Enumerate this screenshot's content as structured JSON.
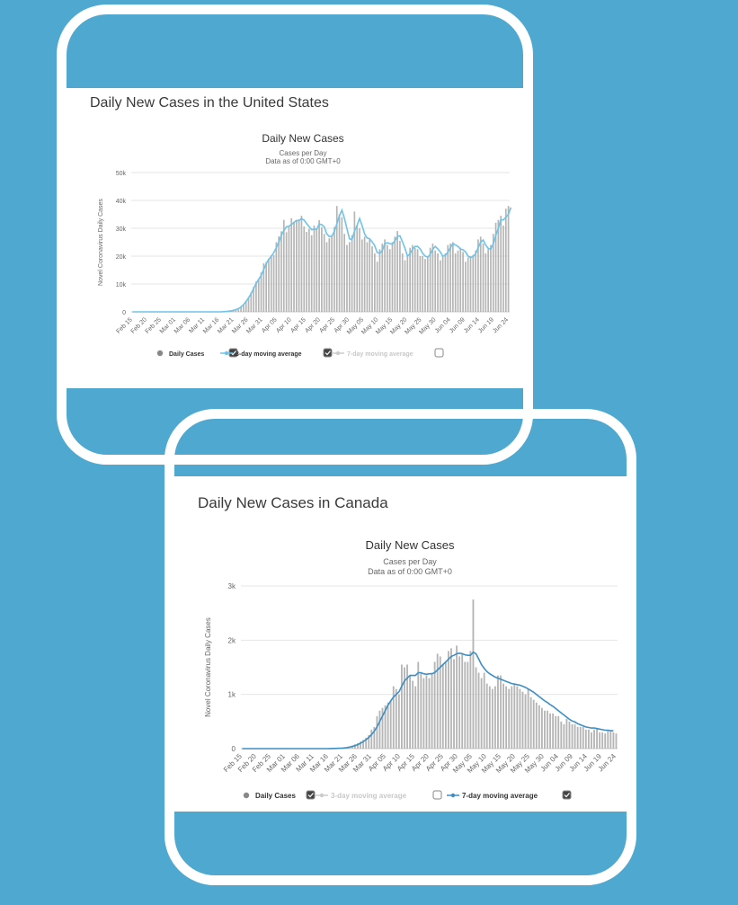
{
  "panels": {
    "us": {
      "title": "Daily New Cases in the United States"
    },
    "ca": {
      "title": "Daily New Cases in Canada"
    }
  },
  "colors": {
    "background": "#4ea8d0",
    "bars": "#b5b5b5",
    "us_average_line": "#6ec3e8",
    "ca_average_line": "#3d8fc4"
  },
  "chart_data": [
    {
      "type": "bar",
      "title": "Daily New Cases",
      "subtitle": "Cases per Day",
      "note": "Data as of 0:00 GMT+0",
      "ylabel": "Novel Coronavirus Daily Cases",
      "xlabel": "",
      "ylim": [
        0,
        50000
      ],
      "yticks": [
        0,
        10000,
        20000,
        30000,
        40000,
        50000
      ],
      "ytick_labels": [
        "0",
        "10k",
        "20k",
        "30k",
        "40k",
        "50k"
      ],
      "grid": true,
      "x_range": [
        "Feb 15",
        "Jun 24"
      ],
      "xtick_labels": [
        "Feb 15",
        "Feb 20",
        "Feb 25",
        "Mar 01",
        "Mar 06",
        "Mar 11",
        "Mar 16",
        "Mar 21",
        "Mar 26",
        "Mar 31",
        "Apr 05",
        "Apr 10",
        "Apr 15",
        "Apr 20",
        "Apr 25",
        "Apr 30",
        "May 05",
        "May 10",
        "May 15",
        "May 20",
        "May 25",
        "May 30",
        "Jun 04",
        "Jun 09",
        "Jun 14",
        "Jun 19",
        "Jun 24"
      ],
      "legend_position": "bottom",
      "legend": [
        {
          "label": "Daily Cases",
          "active": true
        },
        {
          "label": "3-day moving average",
          "active": true
        },
        {
          "label": "7-day moving average",
          "active": false
        }
      ],
      "series": [
        {
          "name": "Daily Cases",
          "values": [
            0,
            0,
            0,
            0,
            0,
            0,
            0,
            0,
            0,
            0,
            0,
            0,
            0,
            0,
            0,
            0,
            0,
            0,
            0,
            0,
            0,
            0,
            0,
            0,
            0,
            0,
            0,
            0,
            0,
            0,
            0,
            0,
            0,
            0,
            0,
            0,
            50,
            100,
            200,
            350,
            500,
            800,
            1200,
            1800,
            2700,
            3900,
            5300,
            7000,
            9000,
            10900,
            11800,
            14100,
            17400,
            17900,
            19100,
            20300,
            20400,
            25000,
            27100,
            28900,
            33000,
            28600,
            30500,
            33600,
            32200,
            32700,
            33200,
            34500,
            30700,
            28700,
            29800,
            27500,
            31000,
            29900,
            32900,
            30400,
            28000,
            25000,
            26400,
            27500,
            30500,
            38000,
            35000,
            34000,
            28000,
            24000,
            25000,
            27500,
            36000,
            31000,
            30000,
            26000,
            27000,
            25000,
            26000,
            23500,
            21000,
            18000,
            22500,
            24500,
            26000,
            24000,
            22500,
            25000,
            27000,
            29000,
            25500,
            21000,
            18500,
            20000,
            23000,
            24000,
            23000,
            22500,
            20000,
            20000,
            19000,
            20000,
            23000,
            24500,
            22000,
            21000,
            18500,
            20000,
            21000,
            24000,
            24500,
            25000,
            21000,
            22000,
            23000,
            21500,
            18000,
            19500,
            20000,
            20500,
            22000,
            26000,
            27000,
            24500,
            21000,
            22500,
            24000,
            28000,
            32000,
            33000,
            34500,
            31000,
            37000,
            38000
          ]
        },
        {
          "name": "3-day moving average",
          "values": [
            0,
            0,
            0,
            0,
            0,
            0,
            0,
            0,
            0,
            0,
            0,
            0,
            0,
            0,
            0,
            0,
            0,
            0,
            0,
            0,
            0,
            0,
            0,
            0,
            0,
            0,
            0,
            0,
            0,
            0,
            0,
            0,
            0,
            0,
            0,
            0,
            50,
            117,
            217,
            350,
            533,
            800,
            1167,
            1767,
            2567,
            3700,
            5033,
            6500,
            8333,
            10200,
            11633,
            13033,
            15133,
            17367,
            18867,
            19900,
            21300,
            23000,
            25000,
            27500,
            29200,
            30500,
            30700,
            31400,
            32100,
            32800,
            32700,
            33500,
            32900,
            31700,
            30600,
            29500,
            29600,
            29600,
            31500,
            31300,
            30500,
            28000,
            27000,
            27200,
            28800,
            31500,
            34500,
            36500,
            33500,
            29800,
            26200,
            26000,
            29000,
            31000,
            33500,
            31000,
            28000,
            26500,
            26200,
            25100,
            23800,
            21300,
            21000,
            22000,
            24500,
            24800,
            24500,
            24300,
            25500,
            27000,
            27300,
            25200,
            22800,
            20000,
            20800,
            22500,
            23500,
            23500,
            22600,
            21000,
            20000,
            19600,
            20600,
            22500,
            23500,
            22600,
            21500,
            20000,
            20300,
            21400,
            23000,
            24500,
            24000,
            23500,
            22500,
            22300,
            21500,
            20000,
            19500,
            19800,
            20800,
            23000,
            25000,
            25800,
            24000,
            22800,
            22500,
            24500,
            27500,
            30000,
            33000,
            33000,
            34000,
            35000,
            37500
          ]
        }
      ]
    },
    {
      "type": "bar",
      "title": "Daily New Cases",
      "subtitle": "Cases per Day",
      "note": "Data as of 0:00 GMT+0",
      "ylabel": "Novel Coronavirus Daily Cases",
      "xlabel": "",
      "ylim": [
        0,
        3000
      ],
      "yticks": [
        0,
        1000,
        2000,
        3000
      ],
      "ytick_labels": [
        "0",
        "1k",
        "2k",
        "3k"
      ],
      "grid": true,
      "x_range": [
        "Feb 15",
        "Jun 24"
      ],
      "xtick_labels": [
        "Feb 15",
        "Feb 20",
        "Feb 25",
        "Mar 01",
        "Mar 06",
        "Mar 11",
        "Mar 16",
        "Mar 21",
        "Mar 26",
        "Mar 31",
        "Apr 05",
        "Apr 10",
        "Apr 15",
        "Apr 20",
        "Apr 25",
        "Apr 30",
        "May 05",
        "May 10",
        "May 15",
        "May 20",
        "May 25",
        "May 30",
        "Jun 04",
        "Jun 09",
        "Jun 14",
        "Jun 19",
        "Jun 24"
      ],
      "legend_position": "bottom",
      "legend": [
        {
          "label": "Daily Cases",
          "active": true
        },
        {
          "label": "3-day moving average",
          "active": false
        },
        {
          "label": "7-day moving average",
          "active": true
        }
      ],
      "series": [
        {
          "name": "Daily Cases",
          "values": [
            0,
            0,
            0,
            0,
            0,
            0,
            0,
            0,
            0,
            0,
            0,
            0,
            0,
            0,
            0,
            0,
            0,
            0,
            0,
            0,
            0,
            0,
            0,
            0,
            0,
            0,
            0,
            0,
            0,
            0,
            0,
            0,
            1,
            3,
            5,
            8,
            10,
            15,
            25,
            40,
            60,
            80,
            100,
            130,
            160,
            200,
            250,
            350,
            400,
            600,
            700,
            750,
            800,
            850,
            900,
            1150,
            1100,
            1000,
            1550,
            1500,
            1550,
            1350,
            1250,
            1150,
            1600,
            1400,
            1300,
            1350,
            1300,
            1400,
            1600,
            1750,
            1700,
            1550,
            1600,
            1800,
            1850,
            1650,
            1900,
            1700,
            1750,
            1600,
            1600,
            1800,
            2750,
            1500,
            1400,
            1300,
            1400,
            1200,
            1150,
            1100,
            1150,
            1350,
            1350,
            1200,
            1150,
            1100,
            1150,
            1200,
            1150,
            1100,
            1050,
            1000,
            1100,
            950,
            900,
            850,
            800,
            750,
            700,
            700,
            650,
            650,
            600,
            600,
            500,
            450,
            550,
            500,
            450,
            450,
            400,
            400,
            400,
            350,
            350,
            300,
            350,
            380,
            300,
            300,
            280,
            350,
            320,
            300,
            280
          ]
        },
        {
          "name": "7-day moving average",
          "values": [
            0,
            0,
            0,
            0,
            0,
            0,
            0,
            0,
            0,
            0,
            0,
            0,
            0,
            0,
            0,
            0,
            0,
            0,
            0,
            0,
            0,
            0,
            0,
            0,
            0,
            0,
            0,
            0,
            0,
            0,
            0,
            0,
            2,
            3,
            4,
            6,
            8,
            12,
            18,
            28,
            40,
            55,
            75,
            100,
            130,
            165,
            205,
            260,
            320,
            400,
            500,
            600,
            700,
            800,
            880,
            950,
            1000,
            1050,
            1150,
            1250,
            1300,
            1350,
            1350,
            1350,
            1400,
            1400,
            1380,
            1370,
            1380,
            1380,
            1400,
            1450,
            1500,
            1550,
            1600,
            1650,
            1700,
            1720,
            1750,
            1760,
            1750,
            1730,
            1720,
            1720,
            1780,
            1750,
            1650,
            1550,
            1480,
            1420,
            1380,
            1350,
            1320,
            1300,
            1280,
            1260,
            1240,
            1220,
            1200,
            1190,
            1180,
            1170,
            1150,
            1130,
            1100,
            1070,
            1040,
            1000,
            960,
            920,
            880,
            850,
            810,
            780,
            740,
            700,
            660,
            620,
            580,
            540,
            510,
            490,
            460,
            440,
            420,
            400,
            390,
            380,
            380,
            370,
            360,
            350,
            340,
            340,
            330,
            330
          ]
        }
      ]
    }
  ]
}
